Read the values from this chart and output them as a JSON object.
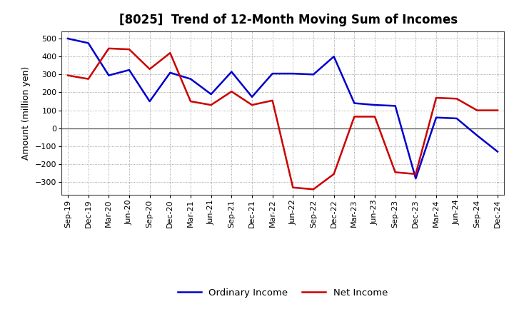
{
  "title": "[8025]  Trend of 12-Month Moving Sum of Incomes",
  "ylabel": "Amount (million yen)",
  "background_color": "#ffffff",
  "grid_color": "#888888",
  "x_labels": [
    "Sep-19",
    "Dec-19",
    "Mar-20",
    "Jun-20",
    "Sep-20",
    "Dec-20",
    "Mar-21",
    "Jun-21",
    "Sep-21",
    "Dec-21",
    "Mar-22",
    "Jun-22",
    "Sep-22",
    "Dec-22",
    "Mar-23",
    "Jun-23",
    "Sep-23",
    "Dec-23",
    "Mar-24",
    "Jun-24",
    "Sep-24",
    "Dec-24"
  ],
  "ordinary_income": [
    500,
    475,
    295,
    325,
    150,
    310,
    275,
    190,
    315,
    175,
    305,
    305,
    300,
    400,
    140,
    130,
    125,
    -280,
    60,
    55,
    -40,
    -130
  ],
  "net_income": [
    295,
    275,
    445,
    440,
    330,
    420,
    150,
    130,
    205,
    130,
    155,
    -330,
    -340,
    -255,
    65,
    65,
    -245,
    -255,
    170,
    165,
    100,
    100
  ],
  "ordinary_color": "#0000cc",
  "net_color": "#cc0000",
  "ylim": [
    -370,
    540
  ],
  "yticks": [
    -300,
    -200,
    -100,
    0,
    100,
    200,
    300,
    400,
    500
  ],
  "legend_labels": [
    "Ordinary Income",
    "Net Income"
  ],
  "title_fontsize": 12,
  "ylabel_fontsize": 9,
  "tick_fontsize": 8
}
